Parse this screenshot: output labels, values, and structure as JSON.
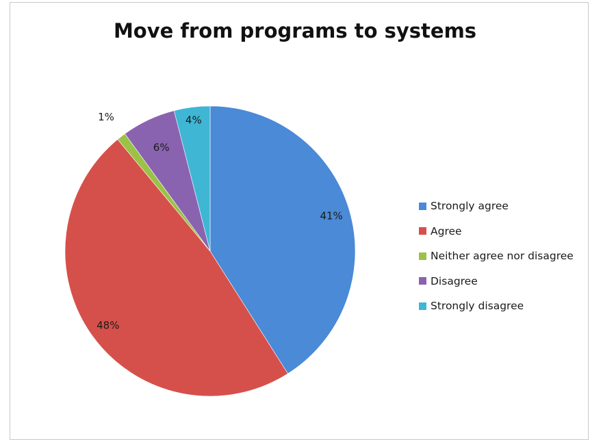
{
  "chart_data": {
    "type": "pie",
    "title": "Move from programs to systems",
    "categories": [
      "Strongly agree",
      "Agree",
      "Neither agree nor disagree",
      "Disagree",
      "Strongly disagree"
    ],
    "values": [
      41,
      48,
      1,
      6,
      4
    ],
    "labels": [
      "41%",
      "48%",
      "1%",
      "6%",
      "4%"
    ],
    "colors": [
      "#4a8ad6",
      "#d6504b",
      "#9bc247",
      "#8a63b0",
      "#3fb6d4"
    ],
    "legend_position": "right"
  }
}
